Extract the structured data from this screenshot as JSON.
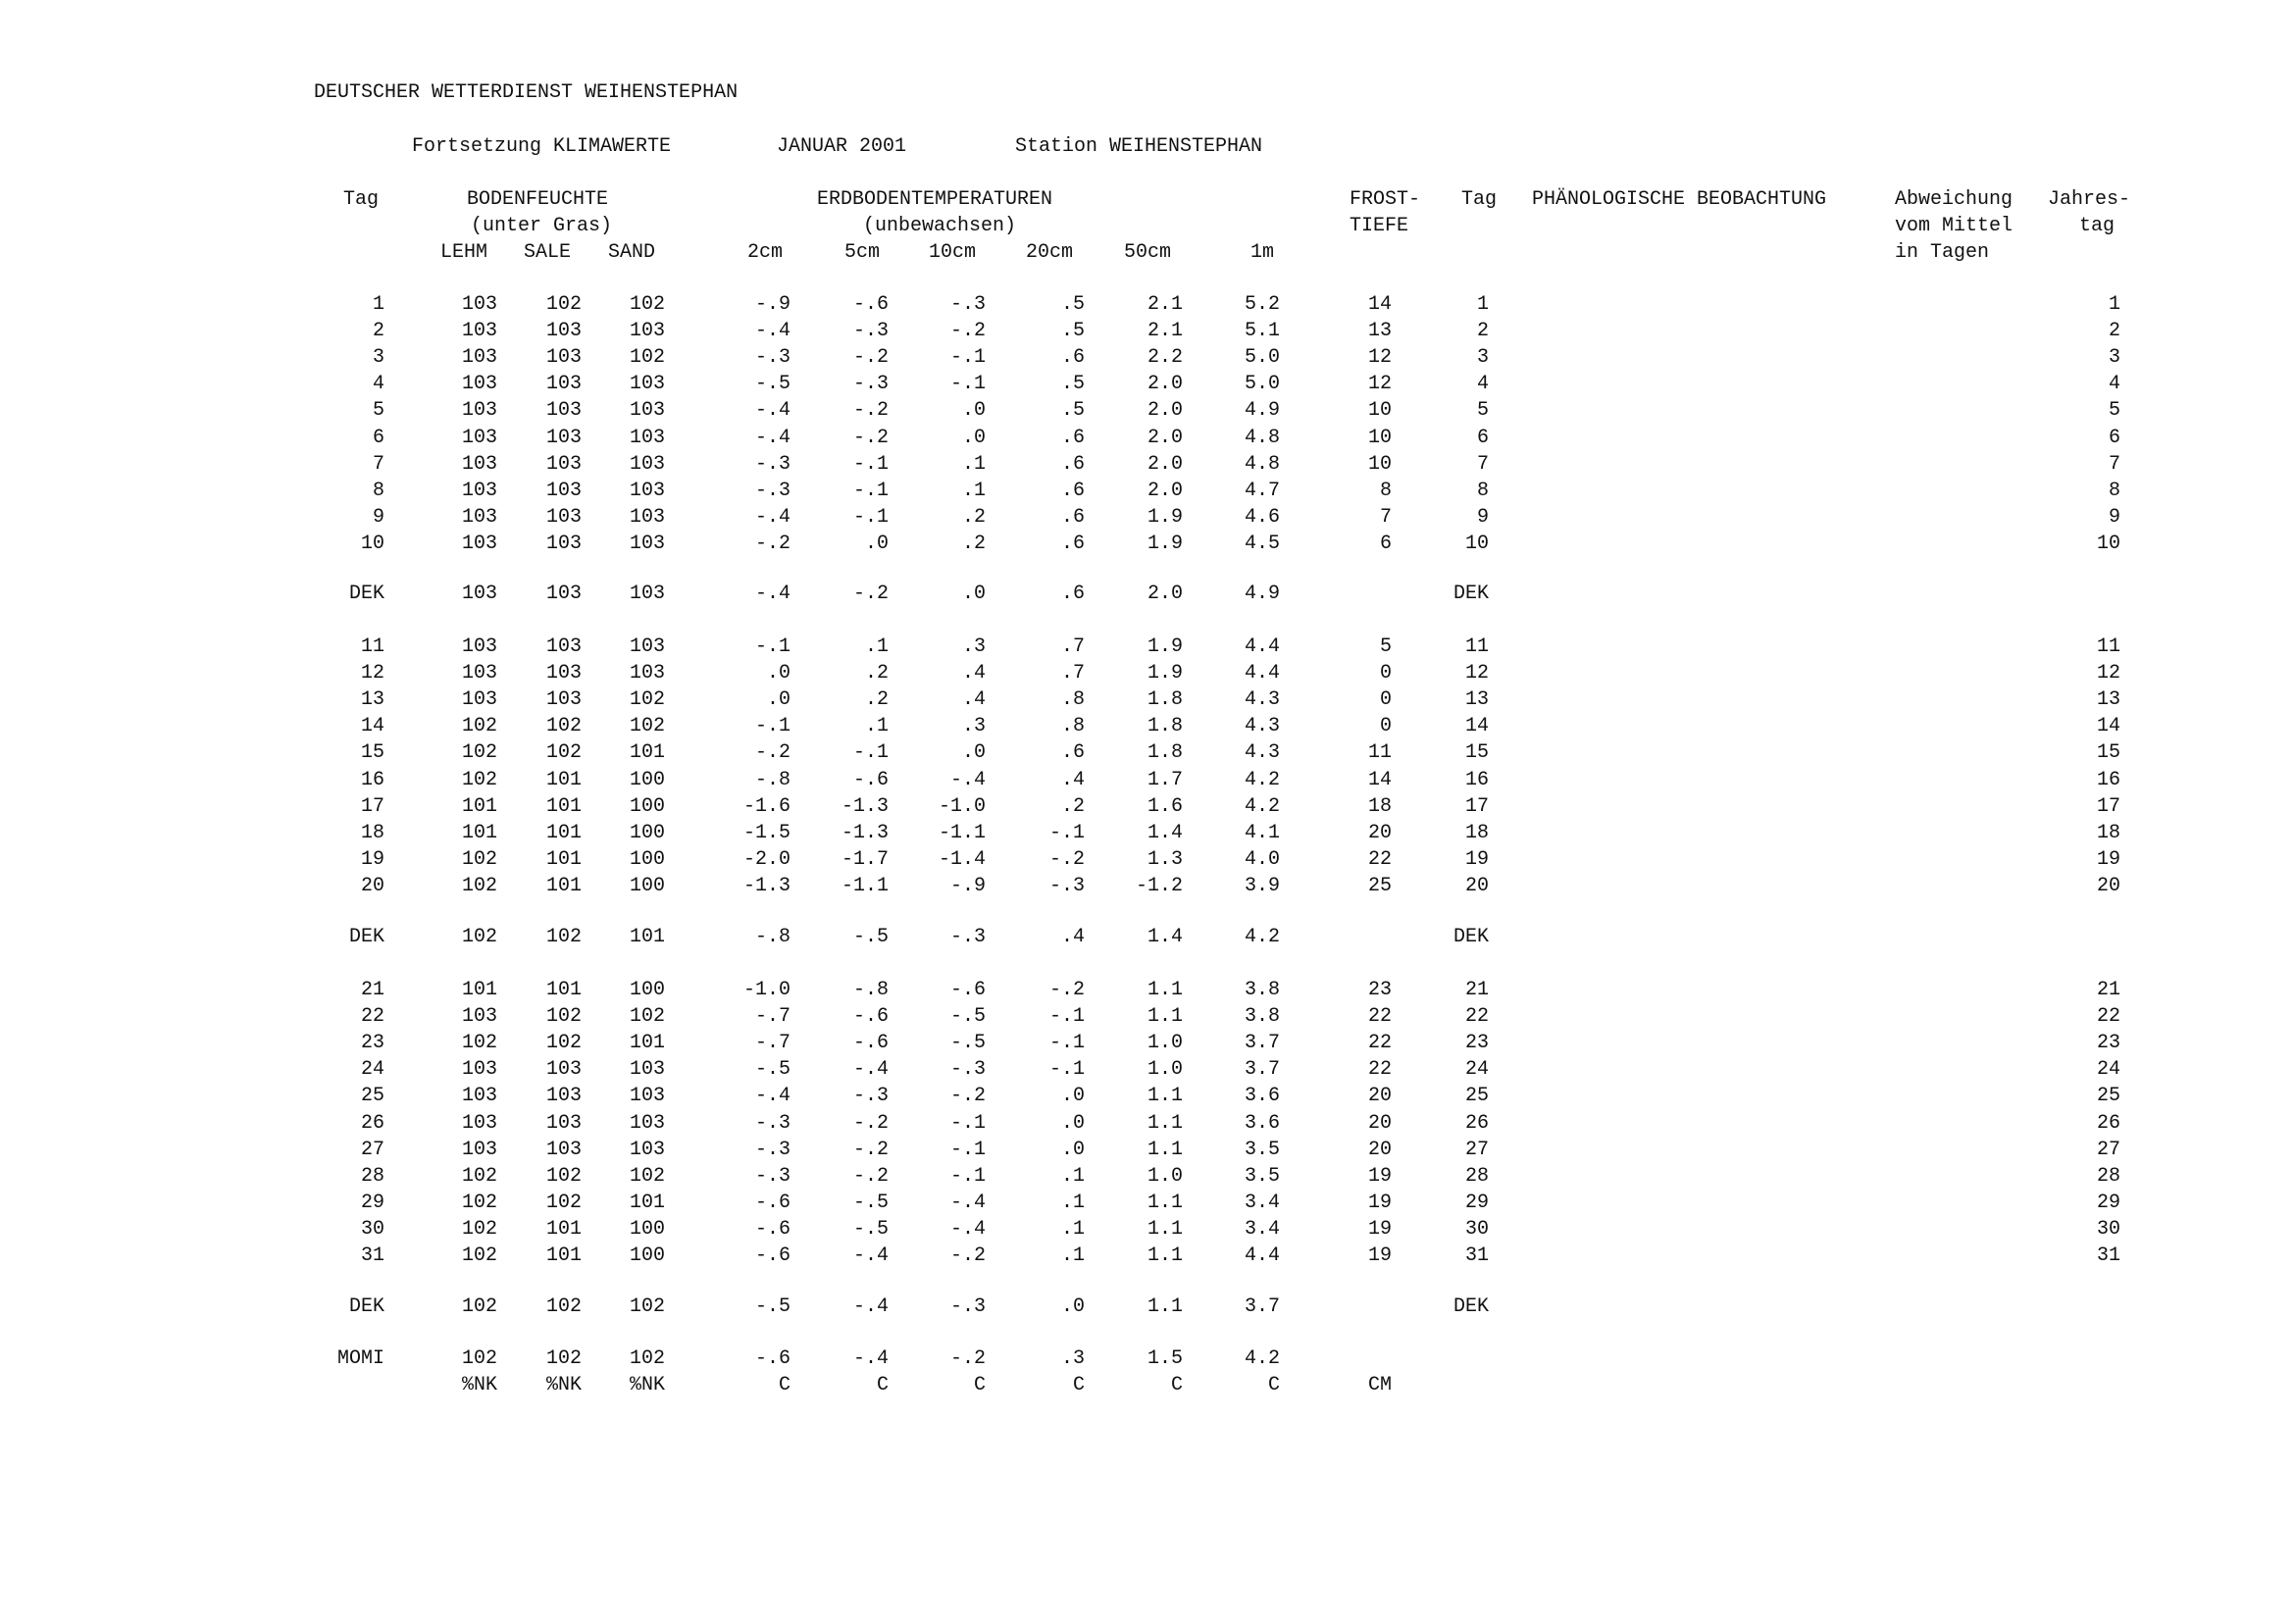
{
  "header": {
    "org": "DEUTSCHER WETTERDIENST WEIHENSTEPHAN",
    "subtitle": "Fortsetzung KLIMAWERTE",
    "month": "JANUAR 2001",
    "station": "Station WEIHENSTEPHAN"
  },
  "columns": {
    "tag": "Tag",
    "bodenfeuchte": "BODENFEUCHTE",
    "bodenfeuchte_sub": "(unter Gras)",
    "erdboden": "ERDBODENTEMPERATUREN",
    "erdboden_sub": "(unbewachsen)",
    "frost1": "FROST-",
    "frost2": "TIEFE",
    "tag2": "Tag",
    "phaeno": "PHÄNOLOGISCHE BEOBACHTUNG",
    "abw1": "Abweichung",
    "abw2": "vom Mittel",
    "abw3": "in Tagen",
    "jahr1": "Jahres-",
    "jahr2": "tag",
    "sub": [
      "LEHM",
      "SALE",
      "SAND",
      "2cm",
      "5cm",
      "10cm",
      "20cm",
      "50cm",
      "1m"
    ]
  },
  "blocks": [
    {
      "rows": [
        [
          "1",
          "103",
          "102",
          "102",
          "-.9",
          "-.6",
          "-.3",
          ".5",
          "2.1",
          "5.2",
          "14",
          "1",
          "1"
        ],
        [
          "2",
          "103",
          "103",
          "103",
          "-.4",
          "-.3",
          "-.2",
          ".5",
          "2.1",
          "5.1",
          "13",
          "2",
          "2"
        ],
        [
          "3",
          "103",
          "103",
          "102",
          "-.3",
          "-.2",
          "-.1",
          ".6",
          "2.2",
          "5.0",
          "12",
          "3",
          "3"
        ],
        [
          "4",
          "103",
          "103",
          "103",
          "-.5",
          "-.3",
          "-.1",
          ".5",
          "2.0",
          "5.0",
          "12",
          "4",
          "4"
        ],
        [
          "5",
          "103",
          "103",
          "103",
          "-.4",
          "-.2",
          ".0",
          ".5",
          "2.0",
          "4.9",
          "10",
          "5",
          "5"
        ],
        [
          "6",
          "103",
          "103",
          "103",
          "-.4",
          "-.2",
          ".0",
          ".6",
          "2.0",
          "4.8",
          "10",
          "6",
          "6"
        ],
        [
          "7",
          "103",
          "103",
          "103",
          "-.3",
          "-.1",
          ".1",
          ".6",
          "2.0",
          "4.8",
          "10",
          "7",
          "7"
        ],
        [
          "8",
          "103",
          "103",
          "103",
          "-.3",
          "-.1",
          ".1",
          ".6",
          "2.0",
          "4.7",
          "8",
          "8",
          "8"
        ],
        [
          "9",
          "103",
          "103",
          "103",
          "-.4",
          "-.1",
          ".2",
          ".6",
          "1.9",
          "4.6",
          "7",
          "9",
          "9"
        ],
        [
          "10",
          "103",
          "103",
          "103",
          "-.2",
          ".0",
          ".2",
          ".6",
          "1.9",
          "4.5",
          "6",
          "10",
          "10"
        ]
      ],
      "dek": [
        "DEK",
        "103",
        "103",
        "103",
        "-.4",
        "-.2",
        ".0",
        ".6",
        "2.0",
        "4.9",
        "",
        "DEK",
        ""
      ]
    },
    {
      "rows": [
        [
          "11",
          "103",
          "103",
          "103",
          "-.1",
          ".1",
          ".3",
          ".7",
          "1.9",
          "4.4",
          "5",
          "11",
          "11"
        ],
        [
          "12",
          "103",
          "103",
          "103",
          ".0",
          ".2",
          ".4",
          ".7",
          "1.9",
          "4.4",
          "0",
          "12",
          "12"
        ],
        [
          "13",
          "103",
          "103",
          "102",
          ".0",
          ".2",
          ".4",
          ".8",
          "1.8",
          "4.3",
          "0",
          "13",
          "13"
        ],
        [
          "14",
          "102",
          "102",
          "102",
          "-.1",
          ".1",
          ".3",
          ".8",
          "1.8",
          "4.3",
          "0",
          "14",
          "14"
        ],
        [
          "15",
          "102",
          "102",
          "101",
          "-.2",
          "-.1",
          ".0",
          ".6",
          "1.8",
          "4.3",
          "11",
          "15",
          "15"
        ],
        [
          "16",
          "102",
          "101",
          "100",
          "-.8",
          "-.6",
          "-.4",
          ".4",
          "1.7",
          "4.2",
          "14",
          "16",
          "16"
        ],
        [
          "17",
          "101",
          "101",
          "100",
          "-1.6",
          "-1.3",
          "-1.0",
          ".2",
          "1.6",
          "4.2",
          "18",
          "17",
          "17"
        ],
        [
          "18",
          "101",
          "101",
          "100",
          "-1.5",
          "-1.3",
          "-1.1",
          "-.1",
          "1.4",
          "4.1",
          "20",
          "18",
          "18"
        ],
        [
          "19",
          "102",
          "101",
          "100",
          "-2.0",
          "-1.7",
          "-1.4",
          "-.2",
          "1.3",
          "4.0",
          "22",
          "19",
          "19"
        ],
        [
          "20",
          "102",
          "101",
          "100",
          "-1.3",
          "-1.1",
          "-.9",
          "-.3",
          "-1.2",
          "3.9",
          "25",
          "20",
          "20"
        ]
      ],
      "dek": [
        "DEK",
        "102",
        "102",
        "101",
        "-.8",
        "-.5",
        "-.3",
        ".4",
        "1.4",
        "4.2",
        "",
        "DEK",
        ""
      ]
    },
    {
      "rows": [
        [
          "21",
          "101",
          "101",
          "100",
          "-1.0",
          "-.8",
          "-.6",
          "-.2",
          "1.1",
          "3.8",
          "23",
          "21",
          "21"
        ],
        [
          "22",
          "103",
          "102",
          "102",
          "-.7",
          "-.6",
          "-.5",
          "-.1",
          "1.1",
          "3.8",
          "22",
          "22",
          "22"
        ],
        [
          "23",
          "102",
          "102",
          "101",
          "-.7",
          "-.6",
          "-.5",
          "-.1",
          "1.0",
          "3.7",
          "22",
          "23",
          "23"
        ],
        [
          "24",
          "103",
          "103",
          "103",
          "-.5",
          "-.4",
          "-.3",
          "-.1",
          "1.0",
          "3.7",
          "22",
          "24",
          "24"
        ],
        [
          "25",
          "103",
          "103",
          "103",
          "-.4",
          "-.3",
          "-.2",
          ".0",
          "1.1",
          "3.6",
          "20",
          "25",
          "25"
        ],
        [
          "26",
          "103",
          "103",
          "103",
          "-.3",
          "-.2",
          "-.1",
          ".0",
          "1.1",
          "3.6",
          "20",
          "26",
          "26"
        ],
        [
          "27",
          "103",
          "103",
          "103",
          "-.3",
          "-.2",
          "-.1",
          ".0",
          "1.1",
          "3.5",
          "20",
          "27",
          "27"
        ],
        [
          "28",
          "102",
          "102",
          "102",
          "-.3",
          "-.2",
          "-.1",
          ".1",
          "1.0",
          "3.5",
          "19",
          "28",
          "28"
        ],
        [
          "29",
          "102",
          "102",
          "101",
          "-.6",
          "-.5",
          "-.4",
          ".1",
          "1.1",
          "3.4",
          "19",
          "29",
          "29"
        ],
        [
          "30",
          "102",
          "101",
          "100",
          "-.6",
          "-.5",
          "-.4",
          ".1",
          "1.1",
          "3.4",
          "19",
          "30",
          "30"
        ],
        [
          "31",
          "102",
          "101",
          "100",
          "-.6",
          "-.4",
          "-.2",
          ".1",
          "1.1",
          "4.4",
          "19",
          "31",
          "31"
        ]
      ],
      "dek": [
        "DEK",
        "102",
        "102",
        "102",
        "-.5",
        "-.4",
        "-.3",
        ".0",
        "1.1",
        "3.7",
        "",
        "DEK",
        ""
      ]
    }
  ],
  "momi": [
    "MOMI",
    "102",
    "102",
    "102",
    "-.6",
    "-.4",
    "-.2",
    ".3",
    "1.5",
    "4.2",
    "",
    "",
    ""
  ],
  "units": [
    "",
    "%NK",
    "%NK",
    "%NK",
    "C",
    "C",
    "C",
    "C",
    "C",
    "C",
    "CM",
    "",
    ""
  ]
}
